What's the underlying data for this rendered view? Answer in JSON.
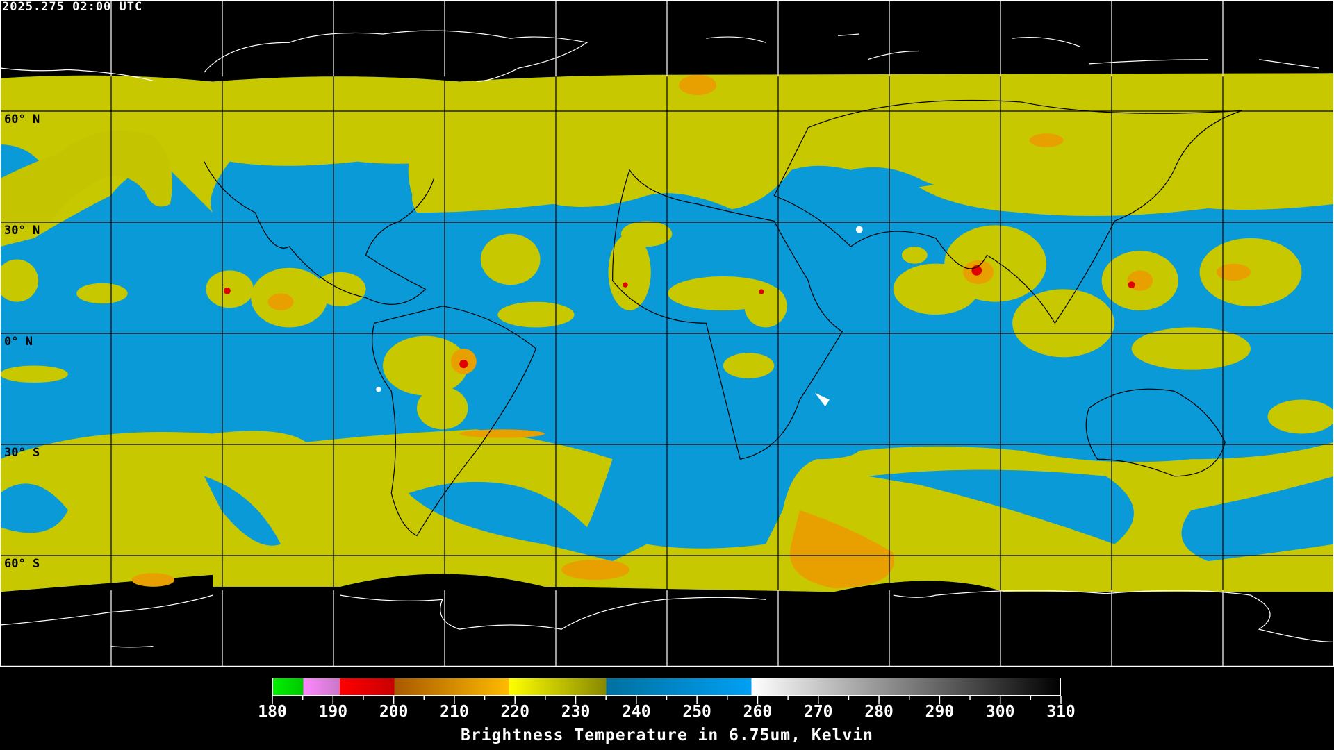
{
  "header": {
    "timestamp": "2025.275 02:00 UTC"
  },
  "map": {
    "projection": "equirectangular",
    "lat_labels": [
      "60° N",
      "30° N",
      "0° N",
      "30° S",
      "60° S"
    ],
    "grid_spacing_degrees": 30,
    "colors": {
      "moist_low": "#0a9ad8",
      "dry_mid": "#c8c800",
      "warm": "#e8a000",
      "hot": "#e00000",
      "background": "#000000"
    }
  },
  "colorbar": {
    "title": "Brightness Temperature in 6.75um, Kelvin",
    "min": 180,
    "max": 310,
    "tick_labels": [
      "180",
      "190",
      "200",
      "210",
      "220",
      "230",
      "240",
      "250",
      "260",
      "270",
      "280",
      "290",
      "300",
      "310"
    ],
    "segments": [
      {
        "from": 180,
        "to": 185,
        "start": "#00f000",
        "end": "#00c800"
      },
      {
        "from": 185,
        "to": 191,
        "start": "#ff88ff",
        "end": "#c878c8"
      },
      {
        "from": 191,
        "to": 200,
        "start": "#ff0000",
        "end": "#c80000"
      },
      {
        "from": 200,
        "to": 219,
        "start": "#a85800",
        "end": "#ffbb00"
      },
      {
        "from": 219,
        "to": 235,
        "start": "#ffff00",
        "end": "#888800"
      },
      {
        "from": 235,
        "to": 259,
        "start": "#0070a0",
        "end": "#00a0f4"
      },
      {
        "from": 259,
        "to": 310,
        "start": "#ffffff",
        "end": "#000000"
      }
    ]
  }
}
